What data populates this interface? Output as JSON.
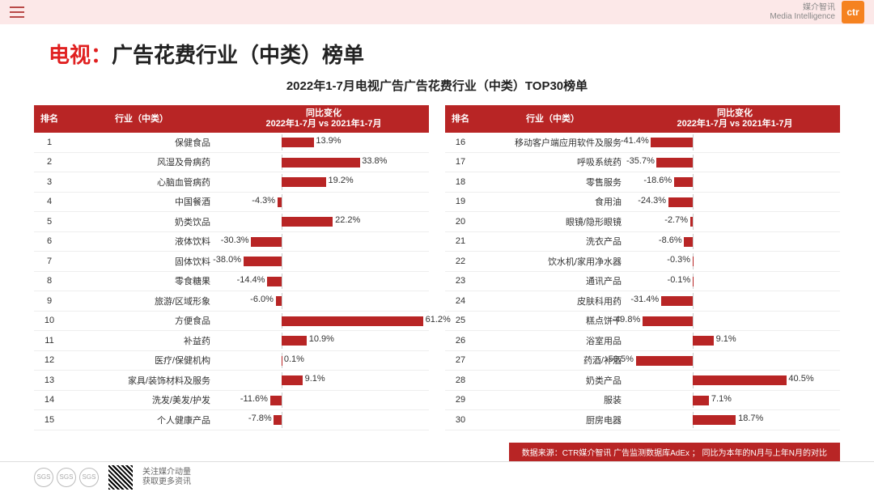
{
  "brand": {
    "line1": "媒介智讯",
    "line2": "Media Intelligence",
    "logo": "ctr"
  },
  "title": {
    "prefix": "电视：",
    "main": "广告花费行业（中类）榜单"
  },
  "subtitle": "2022年1-7月电视广告广告花费行业（中类）TOP30榜单",
  "headers": {
    "rank": "排名",
    "industry": "行业（中类）",
    "change_line1": "同比变化",
    "change_line2": "2022年1-7月 vs 2021年1-7月"
  },
  "chart": {
    "bar_color": "#b82525",
    "header_bg": "#b82525",
    "axis_pct": 0.3,
    "scale_pos": 0.011,
    "scale_neg": 0.0048
  },
  "left": [
    {
      "rank": 1,
      "industry": "保健食品",
      "value": 13.9,
      "label": "13.9%"
    },
    {
      "rank": 2,
      "industry": "风湿及骨病药",
      "value": 33.8,
      "label": "33.8%"
    },
    {
      "rank": 3,
      "industry": "心脑血管病药",
      "value": 19.2,
      "label": "19.2%"
    },
    {
      "rank": 4,
      "industry": "中国餐酒",
      "value": -4.3,
      "label": "-4.3%"
    },
    {
      "rank": 5,
      "industry": "奶类饮品",
      "value": 22.2,
      "label": "22.2%"
    },
    {
      "rank": 6,
      "industry": "液体饮料",
      "value": -30.3,
      "label": "-30.3%"
    },
    {
      "rank": 7,
      "industry": "固体饮料",
      "value": -38.0,
      "label": "-38.0%"
    },
    {
      "rank": 8,
      "industry": "零食糖果",
      "value": -14.4,
      "label": "-14.4%"
    },
    {
      "rank": 9,
      "industry": "旅游/区域形象",
      "value": -6.0,
      "label": "-6.0%"
    },
    {
      "rank": 10,
      "industry": "方便食品",
      "value": 61.2,
      "label": "61.2%"
    },
    {
      "rank": 11,
      "industry": "补益药",
      "value": 10.9,
      "label": "10.9%"
    },
    {
      "rank": 12,
      "industry": "医疗/保健机构",
      "value": 0.1,
      "label": "0.1%"
    },
    {
      "rank": 13,
      "industry": "家具/装饰材料及服务",
      "value": 9.1,
      "label": "9.1%"
    },
    {
      "rank": 14,
      "industry": "洗发/美发/护发",
      "value": -11.6,
      "label": "-11.6%"
    },
    {
      "rank": 15,
      "industry": "个人健康产品",
      "value": -7.8,
      "label": "-7.8%"
    }
  ],
  "right": [
    {
      "rank": 16,
      "industry": "移动客户端应用软件及服务",
      "value": -41.4,
      "label": "-41.4%"
    },
    {
      "rank": 17,
      "industry": "呼吸系统药",
      "value": -35.7,
      "label": "-35.7%"
    },
    {
      "rank": 18,
      "industry": "零售服务",
      "value": -18.6,
      "label": "-18.6%"
    },
    {
      "rank": 19,
      "industry": "食用油",
      "value": -24.3,
      "label": "-24.3%"
    },
    {
      "rank": 20,
      "industry": "眼镜/隐形眼镜",
      "value": -2.7,
      "label": "-2.7%"
    },
    {
      "rank": 21,
      "industry": "洗衣产品",
      "value": -8.6,
      "label": "-8.6%"
    },
    {
      "rank": 22,
      "industry": "饮水机/家用净水器",
      "value": -0.3,
      "label": "-0.3%"
    },
    {
      "rank": 23,
      "industry": "通讯产品",
      "value": -0.1,
      "label": "-0.1%"
    },
    {
      "rank": 24,
      "industry": "皮肤科用药",
      "value": -31.4,
      "label": "-31.4%"
    },
    {
      "rank": 25,
      "industry": "糕点饼干",
      "value": -49.8,
      "label": "-49.8%"
    },
    {
      "rank": 26,
      "industry": "浴室用品",
      "value": 9.1,
      "label": "9.1%"
    },
    {
      "rank": 27,
      "industry": "药酒/补酒",
      "value": -56.5,
      "label": "-56.5%"
    },
    {
      "rank": 28,
      "industry": "奶类产品",
      "value": 40.5,
      "label": "40.5%"
    },
    {
      "rank": 29,
      "industry": "服装",
      "value": 7.1,
      "label": "7.1%"
    },
    {
      "rank": 30,
      "industry": "厨房电器",
      "value": 18.7,
      "label": "18.7%"
    }
  ],
  "source": "数据来源：CTR媒介智讯 广告监测数据库AdEx ； 同比为本年的N月与上年N月的对比",
  "footer": {
    "line1": "关注媒介动量",
    "line2": "获取更多资讯"
  }
}
